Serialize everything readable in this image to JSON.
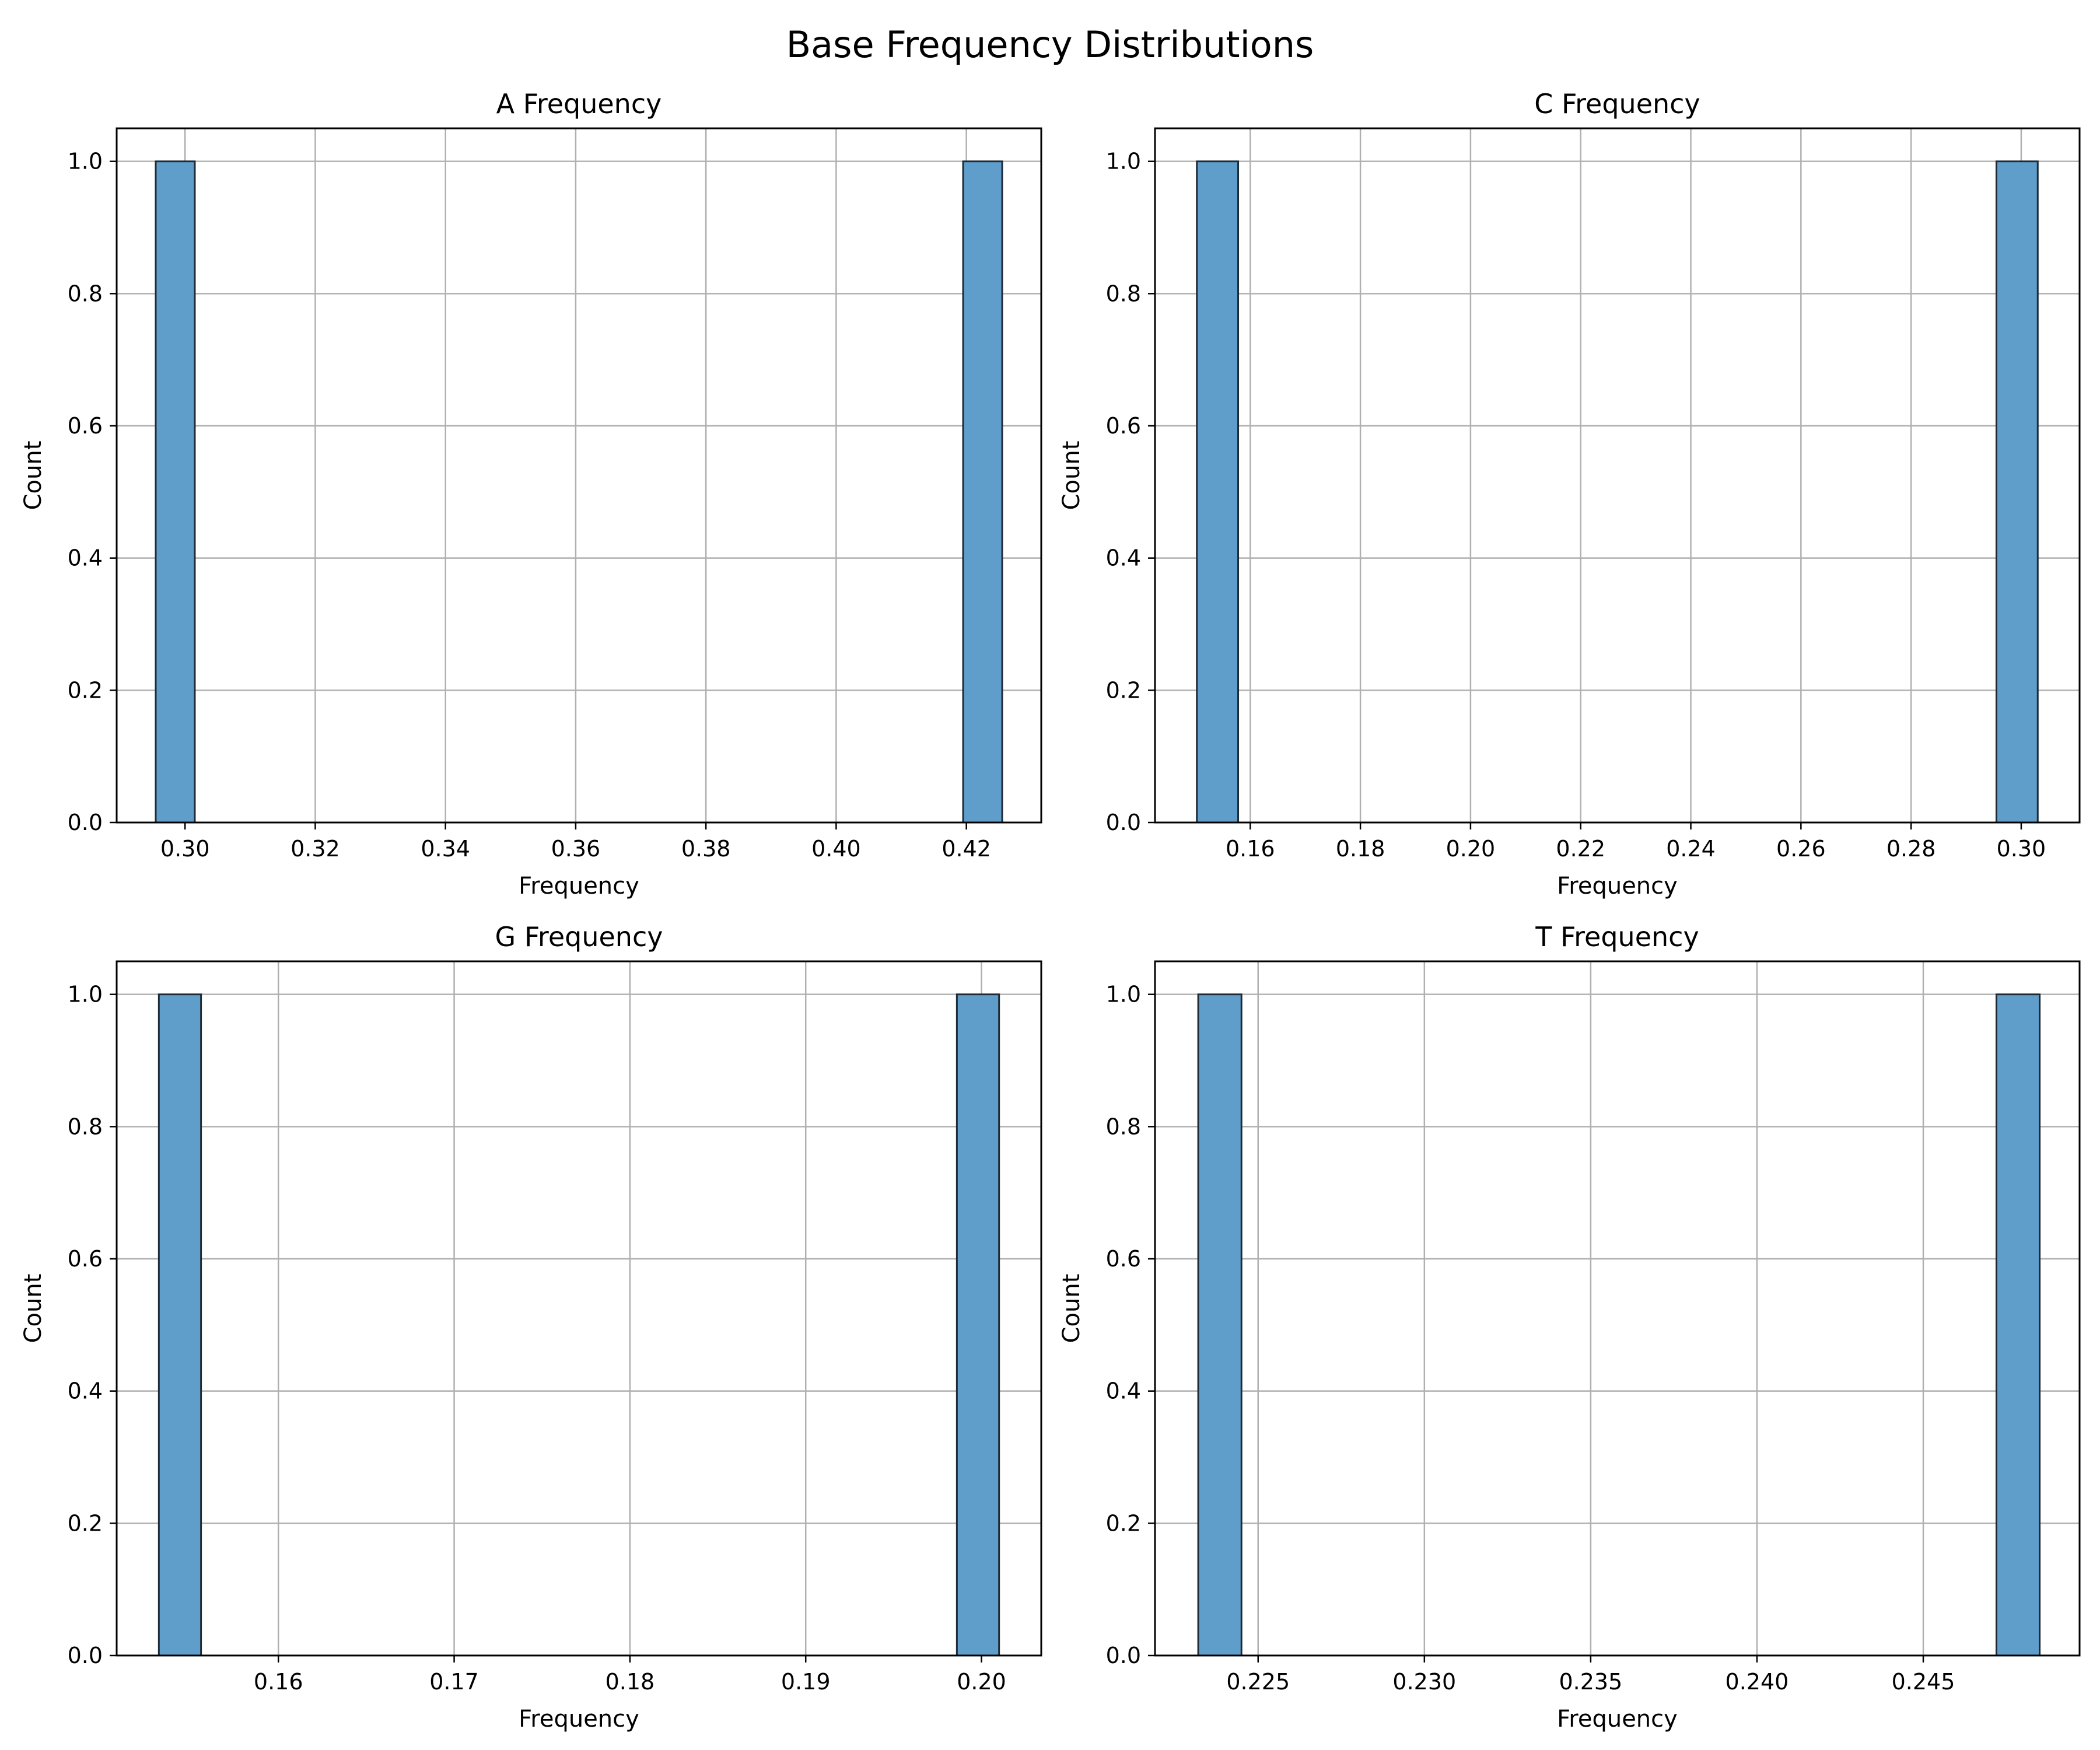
{
  "figure": {
    "title": "Base Frequency Distributions"
  },
  "colors": {
    "bar_fill": "#5f9ecb",
    "bar_edge": "#1e2b36",
    "grid": "#b0b0b0",
    "axis": "#000000"
  },
  "chart_data": [
    {
      "type": "bar",
      "title": "A Frequency",
      "xlabel": "Frequency",
      "ylabel": "Count",
      "xlim": [
        0.2895,
        0.4315
      ],
      "ylim": [
        0,
        1.05
      ],
      "xticks": [
        0.3,
        0.32,
        0.34,
        0.36,
        0.38,
        0.4,
        0.42
      ],
      "xtick_labels": [
        "0.30",
        "0.32",
        "0.34",
        "0.36",
        "0.38",
        "0.40",
        "0.42"
      ],
      "yticks": [
        0.0,
        0.2,
        0.4,
        0.6,
        0.8,
        1.0
      ],
      "ytick_labels": [
        "0.0",
        "0.2",
        "0.4",
        "0.6",
        "0.8",
        "1.0"
      ],
      "grid": true,
      "bins": [
        {
          "x0": 0.2955,
          "x1": 0.3015,
          "count": 1
        },
        {
          "x0": 0.4195,
          "x1": 0.4255,
          "count": 1
        }
      ]
    },
    {
      "type": "bar",
      "title": "C Frequency",
      "xlabel": "Frequency",
      "ylabel": "Count",
      "xlim": [
        0.1427,
        0.3106
      ],
      "ylim": [
        0,
        1.05
      ],
      "xticks": [
        0.16,
        0.18,
        0.2,
        0.22,
        0.24,
        0.26,
        0.28,
        0.3
      ],
      "xtick_labels": [
        "0.16",
        "0.18",
        "0.20",
        "0.22",
        "0.24",
        "0.26",
        "0.28",
        "0.30"
      ],
      "yticks": [
        0.0,
        0.2,
        0.4,
        0.6,
        0.8,
        1.0
      ],
      "ytick_labels": [
        "0.0",
        "0.2",
        "0.4",
        "0.6",
        "0.8",
        "1.0"
      ],
      "grid": true,
      "bins": [
        {
          "x0": 0.1503,
          "x1": 0.1578,
          "count": 1
        },
        {
          "x0": 0.2955,
          "x1": 0.303,
          "count": 1
        }
      ]
    },
    {
      "type": "bar",
      "title": "G Frequency",
      "xlabel": "Frequency",
      "ylabel": "Count",
      "xlim": [
        0.1508,
        0.2034
      ],
      "ylim": [
        0,
        1.05
      ],
      "xticks": [
        0.16,
        0.17,
        0.18,
        0.19,
        0.2
      ],
      "xtick_labels": [
        "0.16",
        "0.17",
        "0.18",
        "0.19",
        "0.20"
      ],
      "yticks": [
        0.0,
        0.2,
        0.4,
        0.6,
        0.8,
        1.0
      ],
      "ytick_labels": [
        "0.0",
        "0.2",
        "0.4",
        "0.6",
        "0.8",
        "1.0"
      ],
      "grid": true,
      "bins": [
        {
          "x0": 0.1532,
          "x1": 0.1556,
          "count": 1
        },
        {
          "x0": 0.1986,
          "x1": 0.201,
          "count": 1
        }
      ]
    },
    {
      "type": "bar",
      "title": "T Frequency",
      "xlabel": "Frequency",
      "ylabel": "Count",
      "xlim": [
        0.2219,
        0.2497
      ],
      "ylim": [
        0,
        1.05
      ],
      "xticks": [
        0.225,
        0.23,
        0.235,
        0.24,
        0.245
      ],
      "xtick_labels": [
        "0.225",
        "0.230",
        "0.235",
        "0.240",
        "0.245"
      ],
      "yticks": [
        0.0,
        0.2,
        0.4,
        0.6,
        0.8,
        1.0
      ],
      "ytick_labels": [
        "0.0",
        "0.2",
        "0.4",
        "0.6",
        "0.8",
        "1.0"
      ],
      "grid": true,
      "bins": [
        {
          "x0": 0.2232,
          "x1": 0.2245,
          "count": 1
        },
        {
          "x0": 0.2472,
          "x1": 0.2485,
          "count": 1
        }
      ]
    }
  ]
}
